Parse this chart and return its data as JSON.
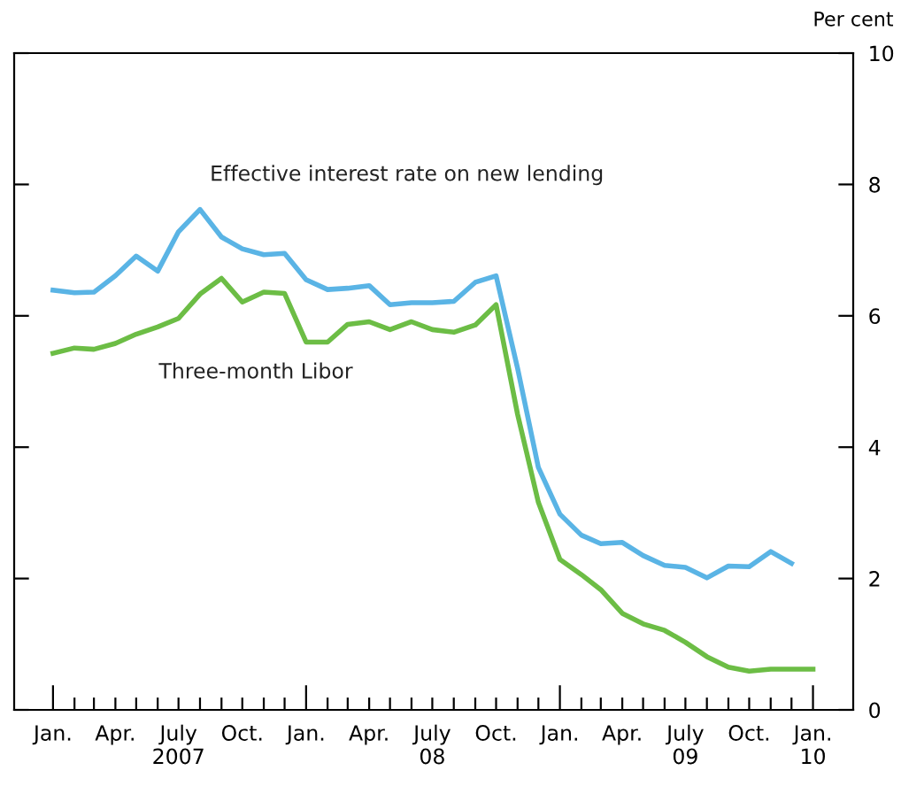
{
  "chart_data": {
    "type": "line",
    "ylabel": "Per cent",
    "xlim": [
      "2006-11-06",
      "2010-02-28"
    ],
    "ylim": [
      0,
      10
    ],
    "yticks": [
      0,
      2,
      4,
      6,
      8,
      10
    ],
    "xticks": [
      {
        "value": "2007-01",
        "label": "Jan."
      },
      {
        "value": "2007-02",
        "label": null
      },
      {
        "value": "2007-03",
        "label": null
      },
      {
        "value": "2007-04",
        "label": "Apr."
      },
      {
        "value": "2007-05",
        "label": null
      },
      {
        "value": "2007-06",
        "label": null
      },
      {
        "value": "2007-07",
        "label": "July\n2007"
      },
      {
        "value": "2007-08",
        "label": null
      },
      {
        "value": "2007-09",
        "label": null
      },
      {
        "value": "2007-10",
        "label": "Oct."
      },
      {
        "value": "2007-11",
        "label": null
      },
      {
        "value": "2007-12",
        "label": null
      },
      {
        "value": "2008-01",
        "label": "Jan."
      },
      {
        "value": "2008-02",
        "label": null
      },
      {
        "value": "2008-03",
        "label": null
      },
      {
        "value": "2008-04",
        "label": "Apr."
      },
      {
        "value": "2008-05",
        "label": null
      },
      {
        "value": "2008-06",
        "label": null
      },
      {
        "value": "2008-07",
        "label": "July\n08"
      },
      {
        "value": "2008-08",
        "label": null
      },
      {
        "value": "2008-09",
        "label": null
      },
      {
        "value": "2008-10",
        "label": "Oct."
      },
      {
        "value": "2008-11",
        "label": null
      },
      {
        "value": "2008-12",
        "label": null
      },
      {
        "value": "2009-01",
        "label": "Jan."
      },
      {
        "value": "2009-02",
        "label": null
      },
      {
        "value": "2009-03",
        "label": null
      },
      {
        "value": "2009-04",
        "label": "Apr."
      },
      {
        "value": "2009-05",
        "label": null
      },
      {
        "value": "2009-06",
        "label": null
      },
      {
        "value": "2009-07",
        "label": "July\n09"
      },
      {
        "value": "2009-08",
        "label": null
      },
      {
        "value": "2009-09",
        "label": null
      },
      {
        "value": "2009-10",
        "label": "Oct."
      },
      {
        "value": "2009-11",
        "label": null
      },
      {
        "value": "2009-12",
        "label": null
      },
      {
        "value": "2010-01",
        "label": "Jan.\n10"
      }
    ],
    "grid": false,
    "legend": false,
    "series": [
      {
        "name": "Effective interest rate on new lending",
        "color": "#5ab4e5",
        "x": [
          "2007-01",
          "2007-02",
          "2007-03",
          "2007-04",
          "2007-05",
          "2007-06",
          "2007-07",
          "2007-08",
          "2007-09",
          "2007-10",
          "2007-11",
          "2007-12",
          "2008-01",
          "2008-02",
          "2008-03",
          "2008-04",
          "2008-05",
          "2008-06",
          "2008-07",
          "2008-08",
          "2008-09",
          "2008-10",
          "2008-11",
          "2008-12",
          "2009-01",
          "2009-02",
          "2009-03",
          "2009-04",
          "2009-05",
          "2009-06",
          "2009-07",
          "2009-08",
          "2009-09",
          "2009-10",
          "2009-11",
          "2009-12"
        ],
        "values": [
          6.39,
          6.35,
          6.36,
          6.61,
          6.91,
          6.68,
          7.28,
          7.62,
          7.2,
          7.02,
          6.93,
          6.95,
          6.55,
          6.4,
          6.42,
          6.46,
          6.17,
          6.2,
          6.2,
          6.22,
          6.51,
          6.61,
          5.2,
          3.69,
          2.98,
          2.66,
          2.53,
          2.55,
          2.35,
          2.2,
          2.17,
          2.01,
          2.19,
          2.18,
          2.41,
          2.23
        ]
      },
      {
        "name": "Three-month Libor",
        "color": "#6cbd45",
        "x": [
          "2007-01",
          "2007-02",
          "2007-03",
          "2007-04",
          "2007-05",
          "2007-06",
          "2007-07",
          "2007-08",
          "2007-09",
          "2007-10",
          "2007-11",
          "2007-12",
          "2008-01",
          "2008-02",
          "2008-03",
          "2008-04",
          "2008-05",
          "2008-06",
          "2008-07",
          "2008-08",
          "2008-09",
          "2008-10",
          "2008-11",
          "2008-12",
          "2009-01",
          "2009-02",
          "2009-03",
          "2009-04",
          "2009-05",
          "2009-06",
          "2009-07",
          "2009-08",
          "2009-09",
          "2009-10",
          "2009-11",
          "2009-12",
          "2010-01"
        ],
        "values": [
          5.43,
          5.51,
          5.49,
          5.58,
          5.72,
          5.83,
          5.96,
          6.33,
          6.57,
          6.21,
          6.36,
          6.34,
          5.6,
          5.6,
          5.87,
          5.91,
          5.79,
          5.91,
          5.79,
          5.75,
          5.86,
          6.17,
          4.5,
          3.16,
          2.29,
          2.06,
          1.83,
          1.47,
          1.31,
          1.21,
          1.03,
          0.81,
          0.65,
          0.59,
          0.62,
          0.62,
          0.62
        ]
      }
    ]
  }
}
